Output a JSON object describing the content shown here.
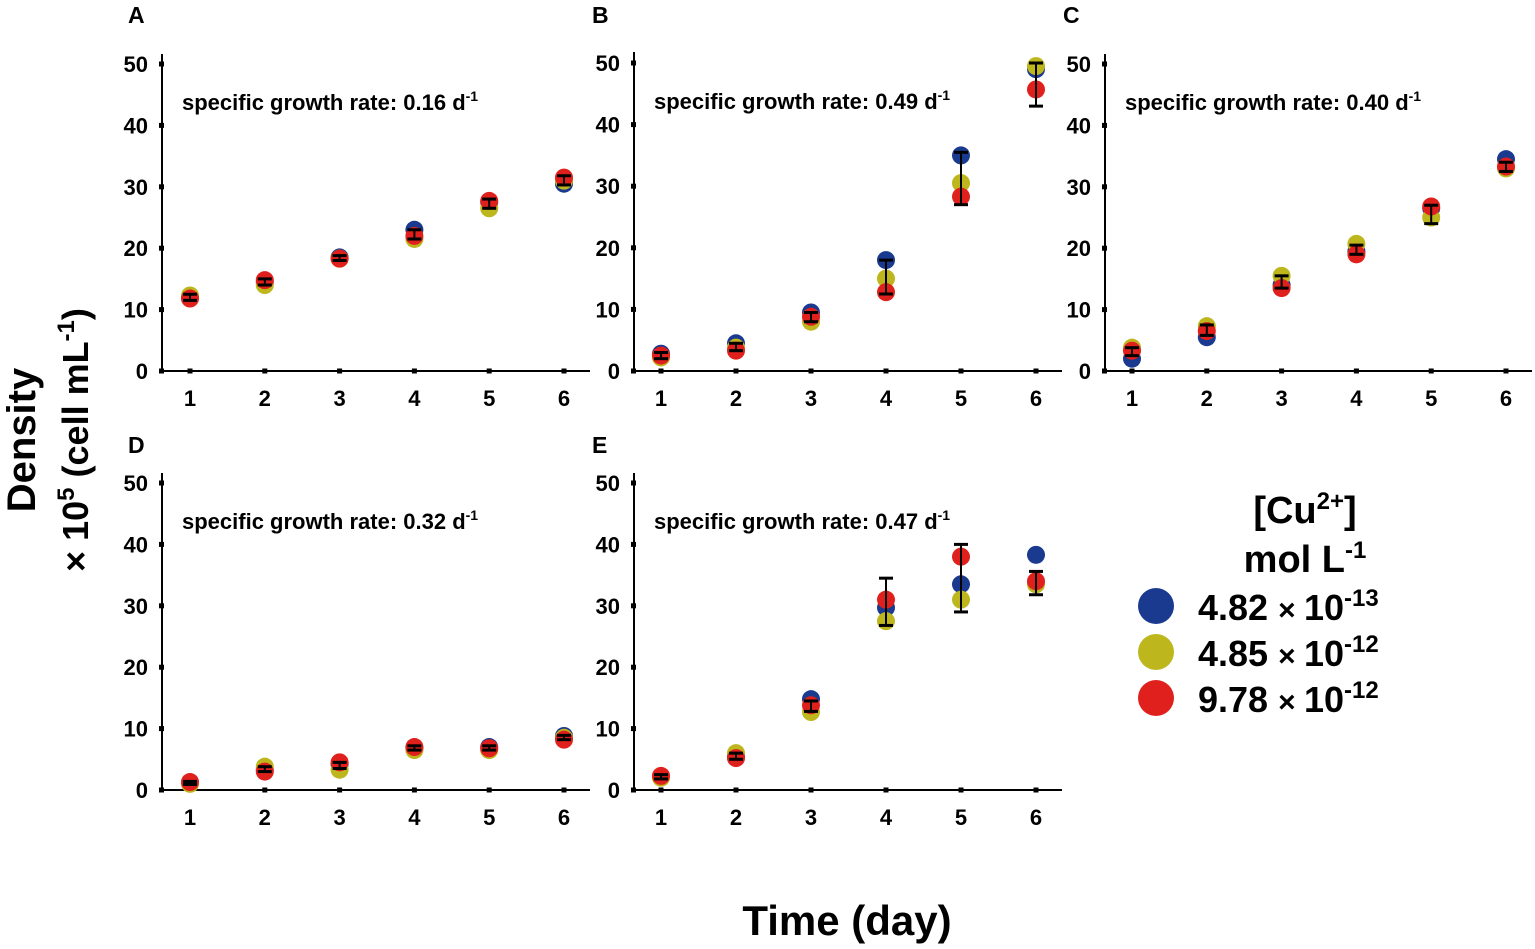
{
  "colors": {
    "s1": "#1a3a8f",
    "s2": "#bdb61c",
    "s3": "#e0201c",
    "axis": "#000000"
  },
  "ylabel_line1": "Density",
  "ylabel_line2": "× 10",
  "ylabel_exp": "5",
  "ylabel_unit": " (cell mL",
  "ylabel_unit_exp": "-1",
  "ylabel_close": ")",
  "xlabel": "Time (day)",
  "legend": {
    "title_line1": "[Cu",
    "title_sup": "2+",
    "title_close": "]",
    "title_line2": "mol L",
    "title_line2_sup": "-1",
    "entries": [
      {
        "mantissa": "4.82",
        "times": "×",
        "base": "10",
        "exp": "-13"
      },
      {
        "mantissa": "4.85",
        "times": "×",
        "base": "10",
        "exp": "-12"
      },
      {
        "mantissa": "9.78",
        "times": "×",
        "base": "10",
        "exp": "-12"
      }
    ]
  },
  "chart_data": [
    {
      "type": "scatter",
      "panel": "A",
      "annotation": "specific growth rate: 0.16 d",
      "annotation_sup": "-1",
      "x": [
        1,
        2,
        3,
        4,
        5,
        6
      ],
      "ylim": [
        0,
        50
      ],
      "yticks": [
        0,
        10,
        20,
        30,
        40,
        50
      ],
      "xticks": [
        1,
        2,
        3,
        4,
        5,
        6
      ],
      "series": [
        {
          "name": "4.82 × 10^-13",
          "values": [
            12.0,
            14.5,
            18.5,
            23.0,
            27.5,
            30.5
          ]
        },
        {
          "name": "4.85 × 10^-12",
          "values": [
            12.3,
            14.0,
            18.3,
            21.5,
            26.5,
            31.0
          ]
        },
        {
          "name": "9.78 × 10^-12",
          "values": [
            11.8,
            14.8,
            18.3,
            22.0,
            27.7,
            31.5
          ]
        }
      ],
      "error_bars": [
        [
          11.5,
          12.5
        ],
        [
          14,
          15
        ],
        [
          18,
          18.8
        ],
        [
          21.5,
          23
        ],
        [
          26.5,
          28
        ],
        [
          30.3,
          31.8
        ]
      ]
    },
    {
      "type": "scatter",
      "panel": "B",
      "annotation": "specific growth rate: 0.49 d",
      "annotation_sup": "-1",
      "x": [
        1,
        2,
        3,
        4,
        5,
        6
      ],
      "ylim": [
        0,
        50
      ],
      "yticks": [
        0,
        10,
        20,
        30,
        40,
        50
      ],
      "xticks": [
        1,
        2,
        3,
        4,
        5,
        6
      ],
      "series": [
        {
          "name": "4.82 × 10^-13",
          "values": [
            2.8,
            4.5,
            9.5,
            18.0,
            35.0,
            49.0
          ]
        },
        {
          "name": "4.85 × 10^-12",
          "values": [
            2.2,
            3.8,
            8.0,
            15.0,
            30.5,
            49.5
          ]
        },
        {
          "name": "9.78 × 10^-12",
          "values": [
            2.5,
            3.3,
            8.8,
            12.8,
            28.3,
            45.7
          ]
        }
      ],
      "error_bars": [
        [
          2,
          3
        ],
        [
          3.3,
          4.5
        ],
        [
          8,
          9.5
        ],
        [
          12.5,
          18
        ],
        [
          27,
          35.5
        ],
        [
          43,
          50
        ]
      ]
    },
    {
      "type": "scatter",
      "panel": "C",
      "annotation": "specific growth rate: 0.40 d",
      "annotation_sup": "-1",
      "x": [
        1,
        2,
        3,
        4,
        5,
        6
      ],
      "ylim": [
        0,
        50
      ],
      "yticks": [
        0,
        10,
        20,
        30,
        40,
        50
      ],
      "xticks": [
        1,
        2,
        3,
        4,
        5,
        6
      ],
      "series": [
        {
          "name": "4.82 × 10^-13",
          "values": [
            2.0,
            5.5,
            14.0,
            19.5,
            26.5,
            34.5
          ]
        },
        {
          "name": "4.85 × 10^-12",
          "values": [
            3.8,
            7.3,
            15.5,
            20.7,
            25.0,
            33.0
          ]
        },
        {
          "name": "9.78 × 10^-12",
          "values": [
            3.3,
            6.5,
            13.5,
            19.0,
            26.8,
            33.3
          ]
        }
      ],
      "error_bars": [
        [
          2.5,
          3.8
        ],
        [
          5.8,
          7.5
        ],
        [
          13.5,
          15.5
        ],
        [
          19,
          20.5
        ],
        [
          24,
          27
        ],
        [
          32.5,
          34
        ]
      ]
    },
    {
      "type": "scatter",
      "panel": "D",
      "annotation": "specific growth rate: 0.32 d",
      "annotation_sup": "-1",
      "x": [
        1,
        2,
        3,
        4,
        5,
        6
      ],
      "ylim": [
        0,
        50
      ],
      "yticks": [
        0,
        10,
        20,
        30,
        40,
        50
      ],
      "xticks": [
        1,
        2,
        3,
        4,
        5,
        6
      ],
      "series": [
        {
          "name": "4.82 × 10^-13",
          "values": [
            1.2,
            3.3,
            4.2,
            6.8,
            7.0,
            8.8
          ]
        },
        {
          "name": "4.85 × 10^-12",
          "values": [
            1.0,
            3.8,
            3.3,
            6.5,
            6.5,
            8.5
          ]
        },
        {
          "name": "9.78 × 10^-12",
          "values": [
            1.3,
            3.0,
            4.5,
            7.0,
            6.8,
            8.2
          ]
        }
      ],
      "error_bars": [
        [
          0.9,
          1.4
        ],
        [
          3,
          3.8
        ],
        [
          3.5,
          4.5
        ],
        [
          6.5,
          7.2
        ],
        [
          6.5,
          7.2
        ],
        [
          8.2,
          8.9
        ]
      ]
    },
    {
      "type": "scatter",
      "panel": "E",
      "annotation": "specific growth rate: 0.47 d",
      "annotation_sup": "-1",
      "x": [
        1,
        2,
        3,
        4,
        5,
        6
      ],
      "ylim": [
        0,
        50
      ],
      "yticks": [
        0,
        10,
        20,
        30,
        40,
        50
      ],
      "xticks": [
        1,
        2,
        3,
        4,
        5,
        6
      ],
      "series": [
        {
          "name": "4.82 × 10^-13",
          "values": [
            2.2,
            5.5,
            14.8,
            29.7,
            33.5,
            38.3
          ]
        },
        {
          "name": "4.85 × 10^-12",
          "values": [
            2.0,
            6.0,
            12.7,
            27.5,
            31.0,
            33.5
          ]
        },
        {
          "name": "9.78 × 10^-12",
          "values": [
            2.3,
            5.2,
            13.8,
            31.0,
            38.0,
            34.0
          ]
        }
      ],
      "error_bars": [
        [
          1.8,
          2.5
        ],
        [
          5,
          6
        ],
        [
          12.8,
          14.5
        ],
        [
          26.8,
          34.5
        ],
        [
          29,
          40
        ],
        [
          31.8,
          35.6
        ]
      ]
    }
  ]
}
